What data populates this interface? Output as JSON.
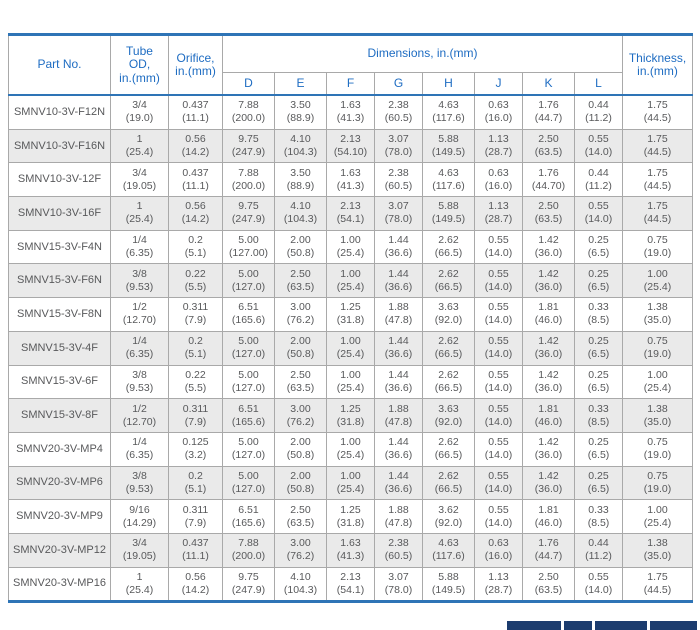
{
  "colors": {
    "header_text": "#1e6cc2",
    "blue_border": "#2e74b6",
    "body_text": "#58595b",
    "stripe": "#eaeaea",
    "grid_line": "#a9a9a9",
    "bottom_bar": "#1c3c6e"
  },
  "table": {
    "headers": {
      "part_no": "Part No.",
      "tube_od": "Tube\nOD,\nin.(mm)",
      "orifice": "Orifice,\nin.(mm)",
      "dimensions": "Dimensions, in.(mm)",
      "thickness": "Thickness,\nin.(mm)",
      "dim_columns": [
        "D",
        "E",
        "F",
        "G",
        "H",
        "J",
        "K",
        "L"
      ]
    },
    "rows": [
      [
        "SMNV10-3V-F12N",
        "3/4\n(19.0)",
        "0.437\n(11.1)",
        "7.88\n(200.0)",
        "3.50\n(88.9)",
        "1.63\n(41.3)",
        "2.38\n(60.5)",
        "4.63\n(117.6)",
        "0.63\n(16.0)",
        "1.76\n(44.7)",
        "0.44\n(11.2)",
        "1.75\n(44.5)"
      ],
      [
        "SMNV10-3V-F16N",
        "1\n(25.4)",
        "0.56\n(14.2)",
        "9.75\n(247.9)",
        "4.10\n(104.3)",
        "2.13\n(54.10)",
        "3.07\n(78.0)",
        "5.88\n(149.5)",
        "1.13\n(28.7)",
        "2.50\n(63.5)",
        "0.55\n(14.0)",
        "1.75\n(44.5)"
      ],
      [
        "SMNV10-3V-12F",
        "3/4\n(19.05)",
        "0.437\n(11.1)",
        "7.88\n(200.0)",
        "3.50\n(88.9)",
        "1.63\n(41.3)",
        "2.38\n(60.5)",
        "4.63\n(117.6)",
        "0.63\n(16.0)",
        "1.76\n(44.70)",
        "0.44\n(11.2)",
        "1.75\n(44.5)"
      ],
      [
        "SMNV10-3V-16F",
        "1\n(25.4)",
        "0.56\n(14.2)",
        "9.75\n(247.9)",
        "4.10\n(104.3)",
        "2.13\n(54.1)",
        "3.07\n(78.0)",
        "5.88\n(149.5)",
        "1.13\n(28.7)",
        "2.50\n(63.5)",
        "0.55\n(14.0)",
        "1.75\n(44.5)"
      ],
      [
        "SMNV15-3V-F4N",
        "1/4\n(6.35)",
        "0.2\n(5.1)",
        "5.00\n(127.00)",
        "2.00\n(50.8)",
        "1.00\n(25.4)",
        "1.44\n(36.6)",
        "2.62\n(66.5)",
        "0.55\n(14.0)",
        "1.42\n(36.0)",
        "0.25\n(6.5)",
        "0.75\n(19.0)"
      ],
      [
        "SMNV15-3V-F6N",
        "3/8\n(9.53)",
        "0.22\n(5.5)",
        "5.00\n(127.0)",
        "2.50\n(63.5)",
        "1.00\n(25.4)",
        "1.44\n(36.6)",
        "2.62\n(66.5)",
        "0.55\n(14.0)",
        "1.42\n(36.0)",
        "0.25\n(6.5)",
        "1.00\n(25.4)"
      ],
      [
        "SMNV15-3V-F8N",
        "1/2\n(12.70)",
        "0.311\n(7.9)",
        "6.51\n(165.6)",
        "3.00\n(76.2)",
        "1.25\n(31.8)",
        "1.88\n(47.8)",
        "3.63\n(92.0)",
        "0.55\n(14.0)",
        "1.81\n(46.0)",
        "0.33\n(8.5)",
        "1.38\n(35.0)"
      ],
      [
        "SMNV15-3V-4F",
        "1/4\n(6.35)",
        "0.2\n(5.1)",
        "5.00\n(127.0)",
        "2.00\n(50.8)",
        "1.00\n(25.4)",
        "1.44\n(36.6)",
        "2.62\n(66.5)",
        "0.55\n(14.0)",
        "1.42\n(36.0)",
        "0.25\n(6.5)",
        "0.75\n(19.0)"
      ],
      [
        "SMNV15-3V-6F",
        "3/8\n(9.53)",
        "0.22\n(5.5)",
        "5.00\n(127.0)",
        "2.50\n(63.5)",
        "1.00\n(25.4)",
        "1.44\n(36.6)",
        "2.62\n(66.5)",
        "0.55\n(14.0)",
        "1.42\n(36.0)",
        "0.25\n(6.5)",
        "1.00\n(25.4)"
      ],
      [
        "SMNV15-3V-8F",
        "1/2\n(12.70)",
        "0.311\n(7.9)",
        "6.51\n(165.6)",
        "3.00\n(76.2)",
        "1.25\n(31.8)",
        "1.88\n(47.8)",
        "3.63\n(92.0)",
        "0.55\n(14.0)",
        "1.81\n(46.0)",
        "0.33\n(8.5)",
        "1.38\n(35.0)"
      ],
      [
        "SMNV20-3V-MP4",
        "1/4\n(6.35)",
        "0.125\n(3.2)",
        "5.00\n(127.0)",
        "2.00\n(50.8)",
        "1.00\n(25.4)",
        "1.44\n(36.6)",
        "2.62\n(66.5)",
        "0.55\n(14.0)",
        "1.42\n(36.0)",
        "0.25\n(6.5)",
        "0.75\n(19.0)"
      ],
      [
        "SMNV20-3V-MP6",
        "3/8\n(9.53)",
        "0.2\n(5.1)",
        "5.00\n(127.0)",
        "2.00\n(50.8)",
        "1.00\n(25.4)",
        "1.44\n(36.6)",
        "2.62\n(66.5)",
        "0.55\n(14.0)",
        "1.42\n(36.0)",
        "0.25\n(6.5)",
        "0.75\n(19.0)"
      ],
      [
        "SMNV20-3V-MP9",
        "9/16\n(14.29)",
        "0.311\n(7.9)",
        "6.51\n(165.6)",
        "2.50\n(63.5)",
        "1.25\n(31.8)",
        "1.88\n(47.8)",
        "3.62\n(92.0)",
        "0.55\n(14.0)",
        "1.81\n(46.0)",
        "0.33\n(8.5)",
        "1.00\n(25.4)"
      ],
      [
        "SMNV20-3V-MP12",
        "3/4\n(19.05)",
        "0.437\n(11.1)",
        "7.88\n(200.0)",
        "3.00\n(76.2)",
        "1.63\n(41.3)",
        "2.38\n(60.5)",
        "4.63\n(117.6)",
        "0.63\n(16.0)",
        "1.76\n(44.7)",
        "0.44\n(11.2)",
        "1.38\n(35.0)"
      ],
      [
        "SMNV20-3V-MP16",
        "1\n(25.4)",
        "0.56\n(14.2)",
        "9.75\n(247.9)",
        "4.10\n(104.3)",
        "2.13\n(54.1)",
        "3.07\n(78.0)",
        "5.88\n(149.5)",
        "1.13\n(28.7)",
        "2.50\n(63.5)",
        "0.55\n(14.0)",
        "1.75\n(44.5)"
      ]
    ]
  }
}
